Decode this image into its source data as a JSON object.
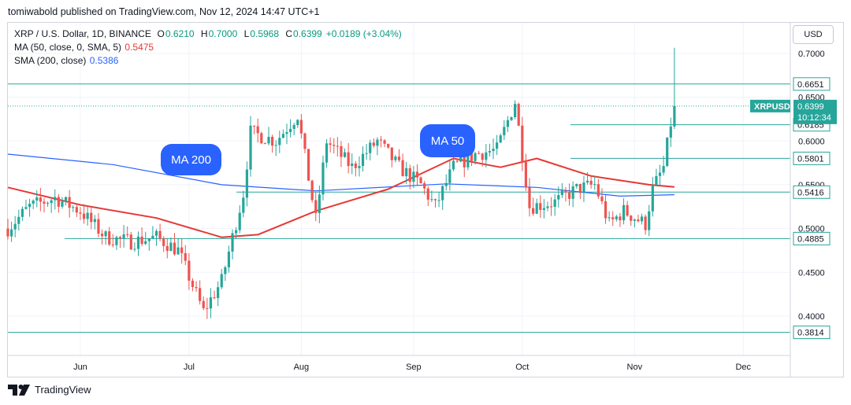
{
  "header": {
    "publisher": "tomiwabold published on TradingView.com, Nov 12, 2024 14:47 UTC+1"
  },
  "legend": {
    "symbol": "XRP / U.S. Dollar, 1D, BINANCE",
    "open_label": "O",
    "open": "0.6210",
    "high_label": "H",
    "high": "0.7000",
    "low_label": "L",
    "low": "0.5968",
    "close_label": "C",
    "close": "0.6399",
    "change": "+0.0189 (+3.04%)",
    "ma_label": "MA (50, close, 0, SMA, 5)",
    "ma_value": "0.5475",
    "sma_label": "SMA (200, close)",
    "sma_value": "0.5386"
  },
  "unit": "USD",
  "footer": {
    "brand": "TradingView"
  },
  "colors": {
    "up": "#26a69a",
    "down": "#ef5350",
    "ma": "#e53935",
    "sma": "#2962ff",
    "level": "#26a69a",
    "bubble": "#2962ff"
  },
  "chart_data": {
    "type": "candlestick",
    "title": "XRP / U.S. Dollar, 1D, BINANCE",
    "x_axis": {
      "ticks": [
        "Jun",
        "Jul",
        "Aug",
        "Sep",
        "Oct",
        "Nov",
        "Dec"
      ]
    },
    "y_axis": {
      "ticks": [
        "0.7000",
        "0.6500",
        "0.6000",
        "0.5500",
        "0.5000",
        "0.4500",
        "0.4000"
      ],
      "ylim": [
        0.355,
        0.735
      ]
    },
    "horizontal_levels": [
      "0.6651",
      "0.6185",
      "0.5801",
      "0.5416",
      "0.4885",
      "0.3814"
    ],
    "price_tag": {
      "symbol": "XRPUSD",
      "price": "0.6399",
      "countdown": "10:12:34"
    },
    "annotations": [
      "MA 200",
      "MA 50"
    ],
    "ohlc_path_approx": [
      [
        "2024-05-12",
        0.5
      ],
      [
        "2024-05-18",
        0.525
      ],
      [
        "2024-05-25",
        0.535
      ],
      [
        "2024-06-01",
        0.52
      ],
      [
        "2024-06-08",
        0.49
      ],
      [
        "2024-06-15",
        0.485
      ],
      [
        "2024-06-22",
        0.49
      ],
      [
        "2024-06-28",
        0.475
      ],
      [
        "2024-07-05",
        0.405
      ],
      [
        "2024-07-10",
        0.44
      ],
      [
        "2024-07-16",
        0.54
      ],
      [
        "2024-07-18",
        0.61
      ],
      [
        "2024-07-25",
        0.6
      ],
      [
        "2024-07-31",
        0.63
      ],
      [
        "2024-08-05",
        0.51
      ],
      [
        "2024-08-08",
        0.6
      ],
      [
        "2024-08-15",
        0.57
      ],
      [
        "2024-08-22",
        0.6
      ],
      [
        "2024-08-28",
        0.57
      ],
      [
        "2024-09-03",
        0.55
      ],
      [
        "2024-09-07",
        0.525
      ],
      [
        "2024-09-12",
        0.57
      ],
      [
        "2024-09-18",
        0.585
      ],
      [
        "2024-09-24",
        0.59
      ],
      [
        "2024-09-29",
        0.645
      ],
      [
        "2024-10-03",
        0.525
      ],
      [
        "2024-10-10",
        0.53
      ],
      [
        "2024-10-16",
        0.545
      ],
      [
        "2024-10-21",
        0.55
      ],
      [
        "2024-10-25",
        0.505
      ],
      [
        "2024-10-29",
        0.52
      ],
      [
        "2024-11-04",
        0.505
      ],
      [
        "2024-11-06",
        0.545
      ],
      [
        "2024-11-09",
        0.57
      ],
      [
        "2024-11-11",
        0.62
      ],
      [
        "2024-11-12",
        0.6399
      ]
    ],
    "ma50_approx": [
      [
        "2024-05-12",
        0.547
      ],
      [
        "2024-06-01",
        0.527
      ],
      [
        "2024-06-22",
        0.512
      ],
      [
        "2024-07-10",
        0.49
      ],
      [
        "2024-07-20",
        0.493
      ],
      [
        "2024-08-05",
        0.52
      ],
      [
        "2024-08-25",
        0.545
      ],
      [
        "2024-09-12",
        0.58
      ],
      [
        "2024-09-25",
        0.57
      ],
      [
        "2024-10-05",
        0.58
      ],
      [
        "2024-10-20",
        0.56
      ],
      [
        "2024-11-05",
        0.55
      ],
      [
        "2024-11-12",
        0.5475
      ]
    ],
    "sma200_approx": [
      [
        "2024-05-12",
        0.585
      ],
      [
        "2024-06-10",
        0.573
      ],
      [
        "2024-07-10",
        0.55
      ],
      [
        "2024-08-05",
        0.543
      ],
      [
        "2024-09-10",
        0.551
      ],
      [
        "2024-10-05",
        0.547
      ],
      [
        "2024-10-28",
        0.537
      ],
      [
        "2024-11-12",
        0.5386
      ]
    ]
  }
}
